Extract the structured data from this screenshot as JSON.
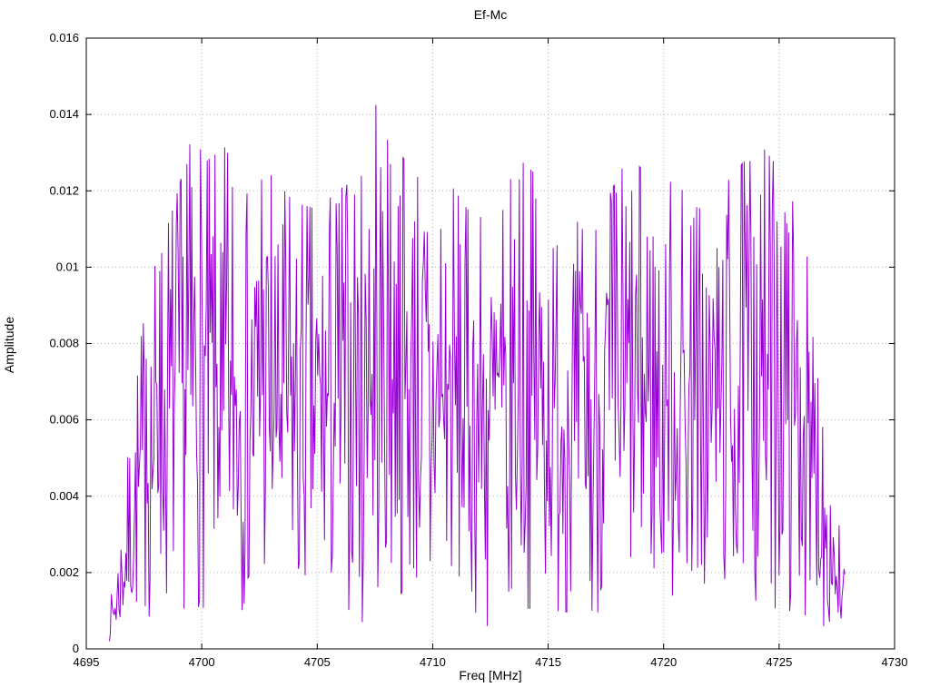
{
  "chart_data": {
    "type": "line",
    "title": "Ef-Mc",
    "xlabel": "Freq [MHz]",
    "ylabel": "Amplitude",
    "xlim": [
      4695,
      4730
    ],
    "ylim": [
      0,
      0.016
    ],
    "x_ticks": [
      4695,
      4700,
      4705,
      4710,
      4715,
      4720,
      4725,
      4730
    ],
    "x_tick_labels": [
      "4695",
      "4700",
      "4705",
      "4710",
      "4715",
      "4720",
      "4725",
      "4730"
    ],
    "y_ticks": [
      0,
      0.002,
      0.004,
      0.006,
      0.008,
      0.01,
      0.012,
      0.014,
      0.016
    ],
    "y_tick_labels": [
      "0",
      "0.002",
      "0.004",
      "0.006",
      "0.008",
      "0.01",
      "0.012",
      "0.014",
      "0.016"
    ],
    "grid": true,
    "legend": "none",
    "line_color": "#9400d3",
    "grid_color": "#b3b3b3",
    "border_color": "#000000",
    "series": {
      "name": "Ef-Mc",
      "description": "Band-limited noise-like amplitude spectrum, occupied band approx 4696-4727.8 MHz, mean amplitude approx 0.007, peak 0.0142 at 4707.6 MHz, steep roll-off at both band edges",
      "x_start": 4696.0,
      "x_end": 4727.85,
      "n_points": 760,
      "seed": 7,
      "envelope": [
        [
          4696.0,
          0.0006
        ],
        [
          4696.3,
          0.0013
        ],
        [
          4696.6,
          0.0022
        ],
        [
          4697.0,
          0.0034
        ],
        [
          4697.4,
          0.0046
        ],
        [
          4697.8,
          0.0054
        ],
        [
          4698.3,
          0.0059
        ],
        [
          4699.0,
          0.0067
        ],
        [
          4699.6,
          0.0075
        ],
        [
          4700.2,
          0.0071
        ],
        [
          4701.0,
          0.0073
        ],
        [
          4702.0,
          0.0066
        ],
        [
          4703.0,
          0.0069
        ],
        [
          4704.0,
          0.0065
        ],
        [
          4705.0,
          0.0064
        ],
        [
          4706.0,
          0.0067
        ],
        [
          4707.0,
          0.0069
        ],
        [
          4707.8,
          0.0075
        ],
        [
          4708.6,
          0.0072
        ],
        [
          4709.5,
          0.0068
        ],
        [
          4710.5,
          0.0069
        ],
        [
          4711.5,
          0.0064
        ],
        [
          4712.5,
          0.0062
        ],
        [
          4713.5,
          0.0072
        ],
        [
          4714.5,
          0.0069
        ],
        [
          4715.5,
          0.0066
        ],
        [
          4716.5,
          0.0061
        ],
        [
          4717.5,
          0.0065
        ],
        [
          4718.5,
          0.0072
        ],
        [
          4719.5,
          0.0068
        ],
        [
          4720.5,
          0.0068
        ],
        [
          4721.5,
          0.0064
        ],
        [
          4722.5,
          0.0067
        ],
        [
          4723.5,
          0.0071
        ],
        [
          4724.3,
          0.0073
        ],
        [
          4725.2,
          0.0069
        ],
        [
          4726.0,
          0.0061
        ],
        [
          4726.6,
          0.005
        ],
        [
          4727.0,
          0.0036
        ],
        [
          4727.4,
          0.0023
        ],
        [
          4727.85,
          0.0012
        ]
      ],
      "noise": {
        "distribution": "rayleigh",
        "sigma": 0.8,
        "min_frac": 0.15,
        "max_frac": 1.8
      },
      "notable_peaks": [
        [
          4697.6,
          0.0076
        ],
        [
          4698.2,
          0.0099
        ],
        [
          4699.35,
          0.0127
        ],
        [
          4699.55,
          0.0121
        ],
        [
          4700.9,
          0.0104
        ],
        [
          4701.35,
          0.0121
        ],
        [
          4702.6,
          0.0123
        ],
        [
          4703.3,
          0.0106
        ],
        [
          4706.6,
          0.0119
        ],
        [
          4707.25,
          0.011
        ],
        [
          4707.55,
          0.01425
        ],
        [
          4708.15,
          0.0127
        ],
        [
          4708.5,
          0.0116
        ],
        [
          4709.2,
          0.0112
        ],
        [
          4710.35,
          0.011
        ],
        [
          4711.2,
          0.0106
        ],
        [
          4713.05,
          0.0115
        ],
        [
          4713.75,
          0.0123
        ],
        [
          4714.45,
          0.0118
        ],
        [
          4715.2,
          0.0105
        ],
        [
          4716.2,
          0.0099
        ],
        [
          4718.35,
          0.0116
        ],
        [
          4718.6,
          0.012
        ],
        [
          4719.3,
          0.0108
        ],
        [
          4720.1,
          0.0106
        ],
        [
          4721.3,
          0.0113
        ],
        [
          4722.3,
          0.0105
        ],
        [
          4723.9,
          0.0108
        ],
        [
          4724.2,
          0.0119
        ],
        [
          4724.9,
          0.0112
        ],
        [
          4725.4,
          0.0109
        ]
      ],
      "notable_dips": [
        [
          4696.05,
          0.0004
        ],
        [
          4702.05,
          0.0019
        ],
        [
          4704.2,
          0.0021
        ],
        [
          4705.6,
          0.002
        ],
        [
          4706.95,
          0.0007
        ],
        [
          4709.9,
          0.0023
        ],
        [
          4712.35,
          0.0006
        ],
        [
          4713.3,
          0.0015
        ],
        [
          4716.9,
          0.001
        ],
        [
          4719.9,
          0.0025
        ],
        [
          4721.65,
          0.0022
        ],
        [
          4723.2,
          0.0025
        ],
        [
          4726.35,
          0.0018
        ],
        [
          4727.7,
          0.0008
        ]
      ]
    }
  }
}
